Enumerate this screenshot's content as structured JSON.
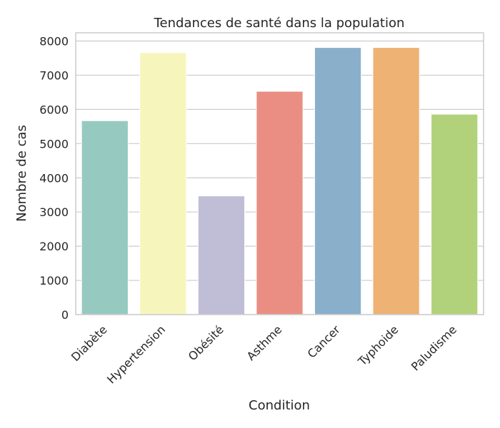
{
  "chart_data": {
    "type": "bar",
    "title": "Tendances de santé dans la population",
    "xlabel": "Condition",
    "ylabel": "Nombre de cas",
    "categories": [
      "Diabète",
      "Hypertension",
      "Obésité",
      "Asthme",
      "Cancer",
      "Typhoide",
      "Paludisme"
    ],
    "values": [
      5670,
      7660,
      3470,
      6530,
      7810,
      7810,
      5860
    ],
    "colors": [
      "#96cac1",
      "#f6f6bc",
      "#c0bdd6",
      "#ea8e83",
      "#8aafca",
      "#edb274",
      "#b1d27a"
    ],
    "ylim": [
      0,
      8240
    ],
    "yticks": [
      0,
      1000,
      2000,
      3000,
      4000,
      5000,
      6000,
      7000,
      8000
    ],
    "grid": "horizontal",
    "legend": "none"
  }
}
